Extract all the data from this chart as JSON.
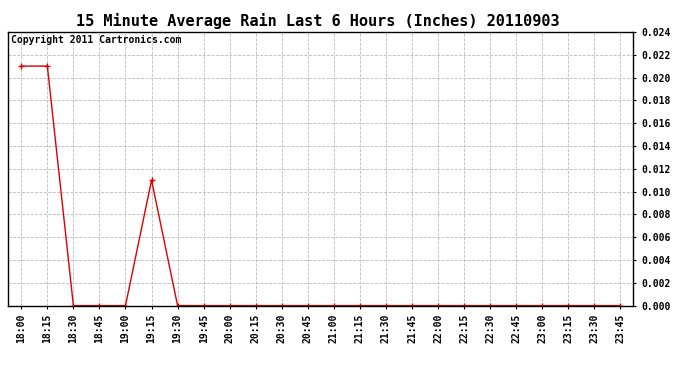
{
  "title": "15 Minute Average Rain Last 6 Hours (Inches) 20110903",
  "copyright": "Copyright 2011 Cartronics.com",
  "x_labels": [
    "18:00",
    "18:15",
    "18:30",
    "18:45",
    "19:00",
    "19:15",
    "19:30",
    "19:45",
    "20:00",
    "20:15",
    "20:30",
    "20:45",
    "21:00",
    "21:15",
    "21:30",
    "21:45",
    "22:00",
    "22:15",
    "22:30",
    "22:45",
    "23:00",
    "23:15",
    "23:30",
    "23:45"
  ],
  "y_values": [
    0.021,
    0.021,
    0.0,
    0.0,
    0.0,
    0.011,
    0.0,
    0.0,
    0.0,
    0.0,
    0.0,
    0.0,
    0.0,
    0.0,
    0.0,
    0.0,
    0.0,
    0.0,
    0.0,
    0.0,
    0.0,
    0.0,
    0.0,
    0.0
  ],
  "line_color": "#dd0000",
  "marker": "+",
  "marker_size": 4,
  "ylim": [
    0.0,
    0.024
  ],
  "yticks": [
    0.0,
    0.002,
    0.004,
    0.006,
    0.008,
    0.01,
    0.012,
    0.014,
    0.016,
    0.018,
    0.02,
    0.022,
    0.024
  ],
  "bg_color": "#ffffff",
  "grid_color": "#bbbbbb",
  "title_fontsize": 11,
  "label_fontsize": 7,
  "copyright_fontsize": 7,
  "fig_width": 6.9,
  "fig_height": 3.75,
  "dpi": 100
}
